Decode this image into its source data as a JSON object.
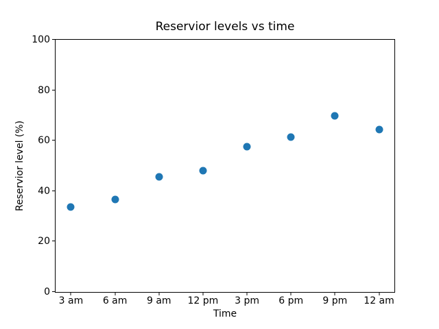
{
  "figure": {
    "background": "#ffffff",
    "text_color": "#000000"
  },
  "chart_data": {
    "type": "scatter",
    "title": "Reservior levels vs time",
    "xlabel": "Time",
    "ylabel": "Reservior level (%)",
    "categories": [
      "3 am",
      "6 am",
      "9 am",
      "12 pm",
      "3 pm",
      "6 pm",
      "9 pm",
      "12 am"
    ],
    "values": [
      33.8,
      36.6,
      45.7,
      48.2,
      57.5,
      61.5,
      69.8,
      64.5
    ],
    "yticks": [
      0,
      20,
      40,
      60,
      80,
      100
    ],
    "ylim": [
      0,
      100
    ],
    "marker_color": "#1f77b4",
    "grid": false,
    "legend": "none"
  }
}
